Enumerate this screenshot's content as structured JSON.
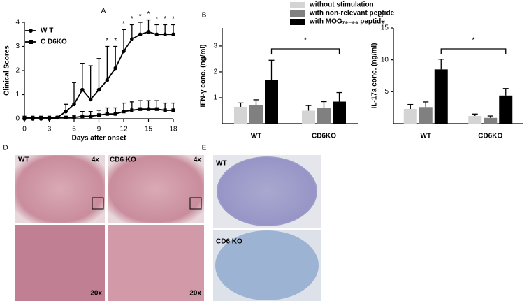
{
  "chart_data": [
    {
      "type": "line",
      "panel": "A",
      "x_label": "Days after onset",
      "y_label": "Clinical Scores",
      "x": [
        0,
        1,
        2,
        3,
        4,
        5,
        6,
        7,
        8,
        9,
        10,
        11,
        12,
        13,
        14,
        15,
        16,
        17,
        18
      ],
      "xlim": [
        0,
        18
      ],
      "xticks": [
        0,
        3,
        6,
        9,
        12,
        15,
        18
      ],
      "ylim": [
        0,
        4
      ],
      "yticks": [
        0,
        1,
        2,
        3,
        4
      ],
      "series": [
        {
          "name": "W T",
          "color": "#000",
          "marker": "circle",
          "values": [
            0,
            0,
            0,
            0,
            0.05,
            0.3,
            0.6,
            1.2,
            0.8,
            1.2,
            1.6,
            2.1,
            2.8,
            3.3,
            3.5,
            3.6,
            3.5,
            3.5,
            3.5
          ],
          "errors": [
            0,
            0,
            0,
            0,
            0.05,
            0.3,
            0.9,
            1.1,
            1.4,
            1.3,
            1.4,
            0.9,
            0.9,
            0.6,
            0.5,
            0.5,
            0.4,
            0.4,
            0.4
          ]
        },
        {
          "name": "C D6KO",
          "color": "#000",
          "marker": "square",
          "values": [
            0.05,
            0.05,
            0.05,
            0.05,
            0.05,
            0.05,
            0.05,
            0.1,
            0.1,
            0.15,
            0.2,
            0.2,
            0.3,
            0.35,
            0.4,
            0.4,
            0.4,
            0.35,
            0.35
          ],
          "errors": [
            0,
            0,
            0,
            0,
            0,
            0.05,
            0.1,
            0.2,
            0.2,
            0.2,
            0.25,
            0.25,
            0.35,
            0.35,
            0.35,
            0.35,
            0.35,
            0.3,
            0.3
          ]
        }
      ],
      "significance_label": "*",
      "significance_x": [
        10,
        11,
        12,
        13,
        14,
        15,
        16,
        17,
        18
      ]
    },
    {
      "type": "bar",
      "panel": "B",
      "y_label": "IFN-γ conc. (ng/ml)",
      "categories": [
        "WT",
        "CD6KO"
      ],
      "ylim": [
        0,
        3.7
      ],
      "yticks": [
        1,
        2,
        3
      ],
      "series": [
        {
          "name": "without stimulation",
          "color": "#d4d4d4",
          "values": [
            0.65,
            0.5
          ],
          "errors": [
            0.15,
            0.2
          ]
        },
        {
          "name": "with non-relevant peptide",
          "color": "#808080",
          "values": [
            0.72,
            0.6
          ],
          "errors": [
            0.2,
            0.25
          ]
        },
        {
          "name": "with MOG₇₉₋₉₆ peptide",
          "color": "#000",
          "values": [
            1.7,
            0.85
          ],
          "errors": [
            0.75,
            0.35
          ]
        }
      ],
      "significance_label": "*"
    },
    {
      "type": "bar",
      "panel": "C",
      "y_label": "IL-17a conc. (ng/ml)",
      "categories": [
        "WT",
        "CD6KO"
      ],
      "ylim": [
        0,
        15
      ],
      "yticks": [
        5,
        10,
        15
      ],
      "series": [
        {
          "color": "#d4d4d4",
          "values": [
            2.3,
            1.2
          ],
          "errors": [
            0.7,
            0.3
          ]
        },
        {
          "color": "#808080",
          "values": [
            2.6,
            0.9
          ],
          "errors": [
            0.8,
            0.3
          ]
        },
        {
          "color": "#000",
          "values": [
            8.5,
            4.4
          ],
          "errors": [
            1.6,
            1.1
          ]
        }
      ],
      "significance_label": "*"
    }
  ],
  "figure_panels": [
    {
      "panel": "D",
      "labels": [
        "WT",
        "4x",
        "CD6 KO",
        "4x",
        "20x",
        "20x"
      ]
    },
    {
      "panel": "E",
      "labels": [
        "WT",
        "CD6 KO"
      ]
    }
  ]
}
